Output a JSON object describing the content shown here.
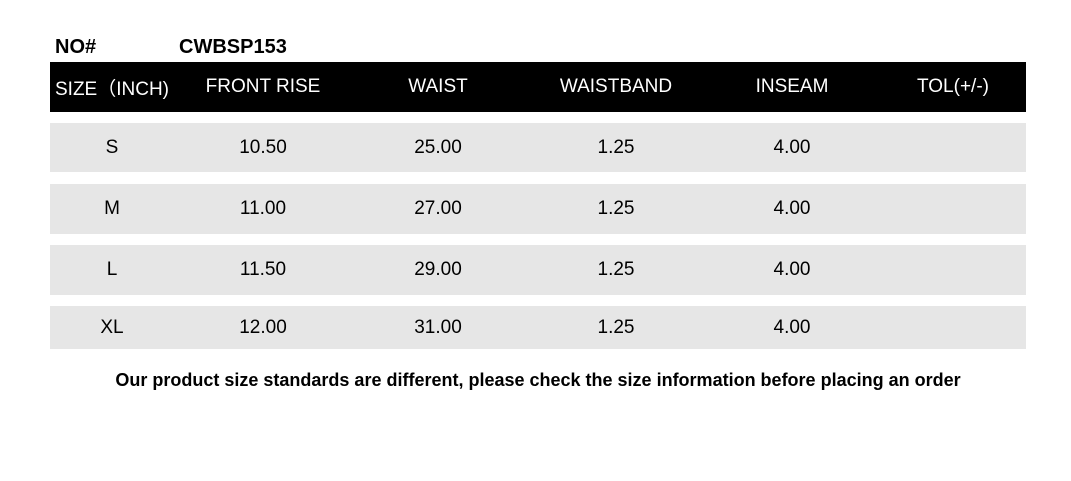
{
  "product": {
    "no_label": "NO#",
    "no_value": "CWBSP153"
  },
  "table": {
    "headers": [
      "SIZE（INCH)",
      "FRONT RISE",
      "WAIST",
      "WAISTBAND",
      "INSEAM",
      "TOL(+/-)"
    ],
    "rows": [
      [
        "S",
        "10.50",
        "25.00",
        "1.25",
        "4.00",
        ""
      ],
      [
        "M",
        "11.00",
        "27.00",
        "1.25",
        "4.00",
        ""
      ],
      [
        "L",
        "11.50",
        "29.00",
        "1.25",
        "4.00",
        ""
      ],
      [
        "XL",
        "12.00",
        "31.00",
        "1.25",
        "4.00",
        ""
      ]
    ]
  },
  "note": "Our product size standards are different, please check the size information before placing an order",
  "colors": {
    "header_bg": "#000000",
    "row_bg": "#e6e6e6"
  }
}
